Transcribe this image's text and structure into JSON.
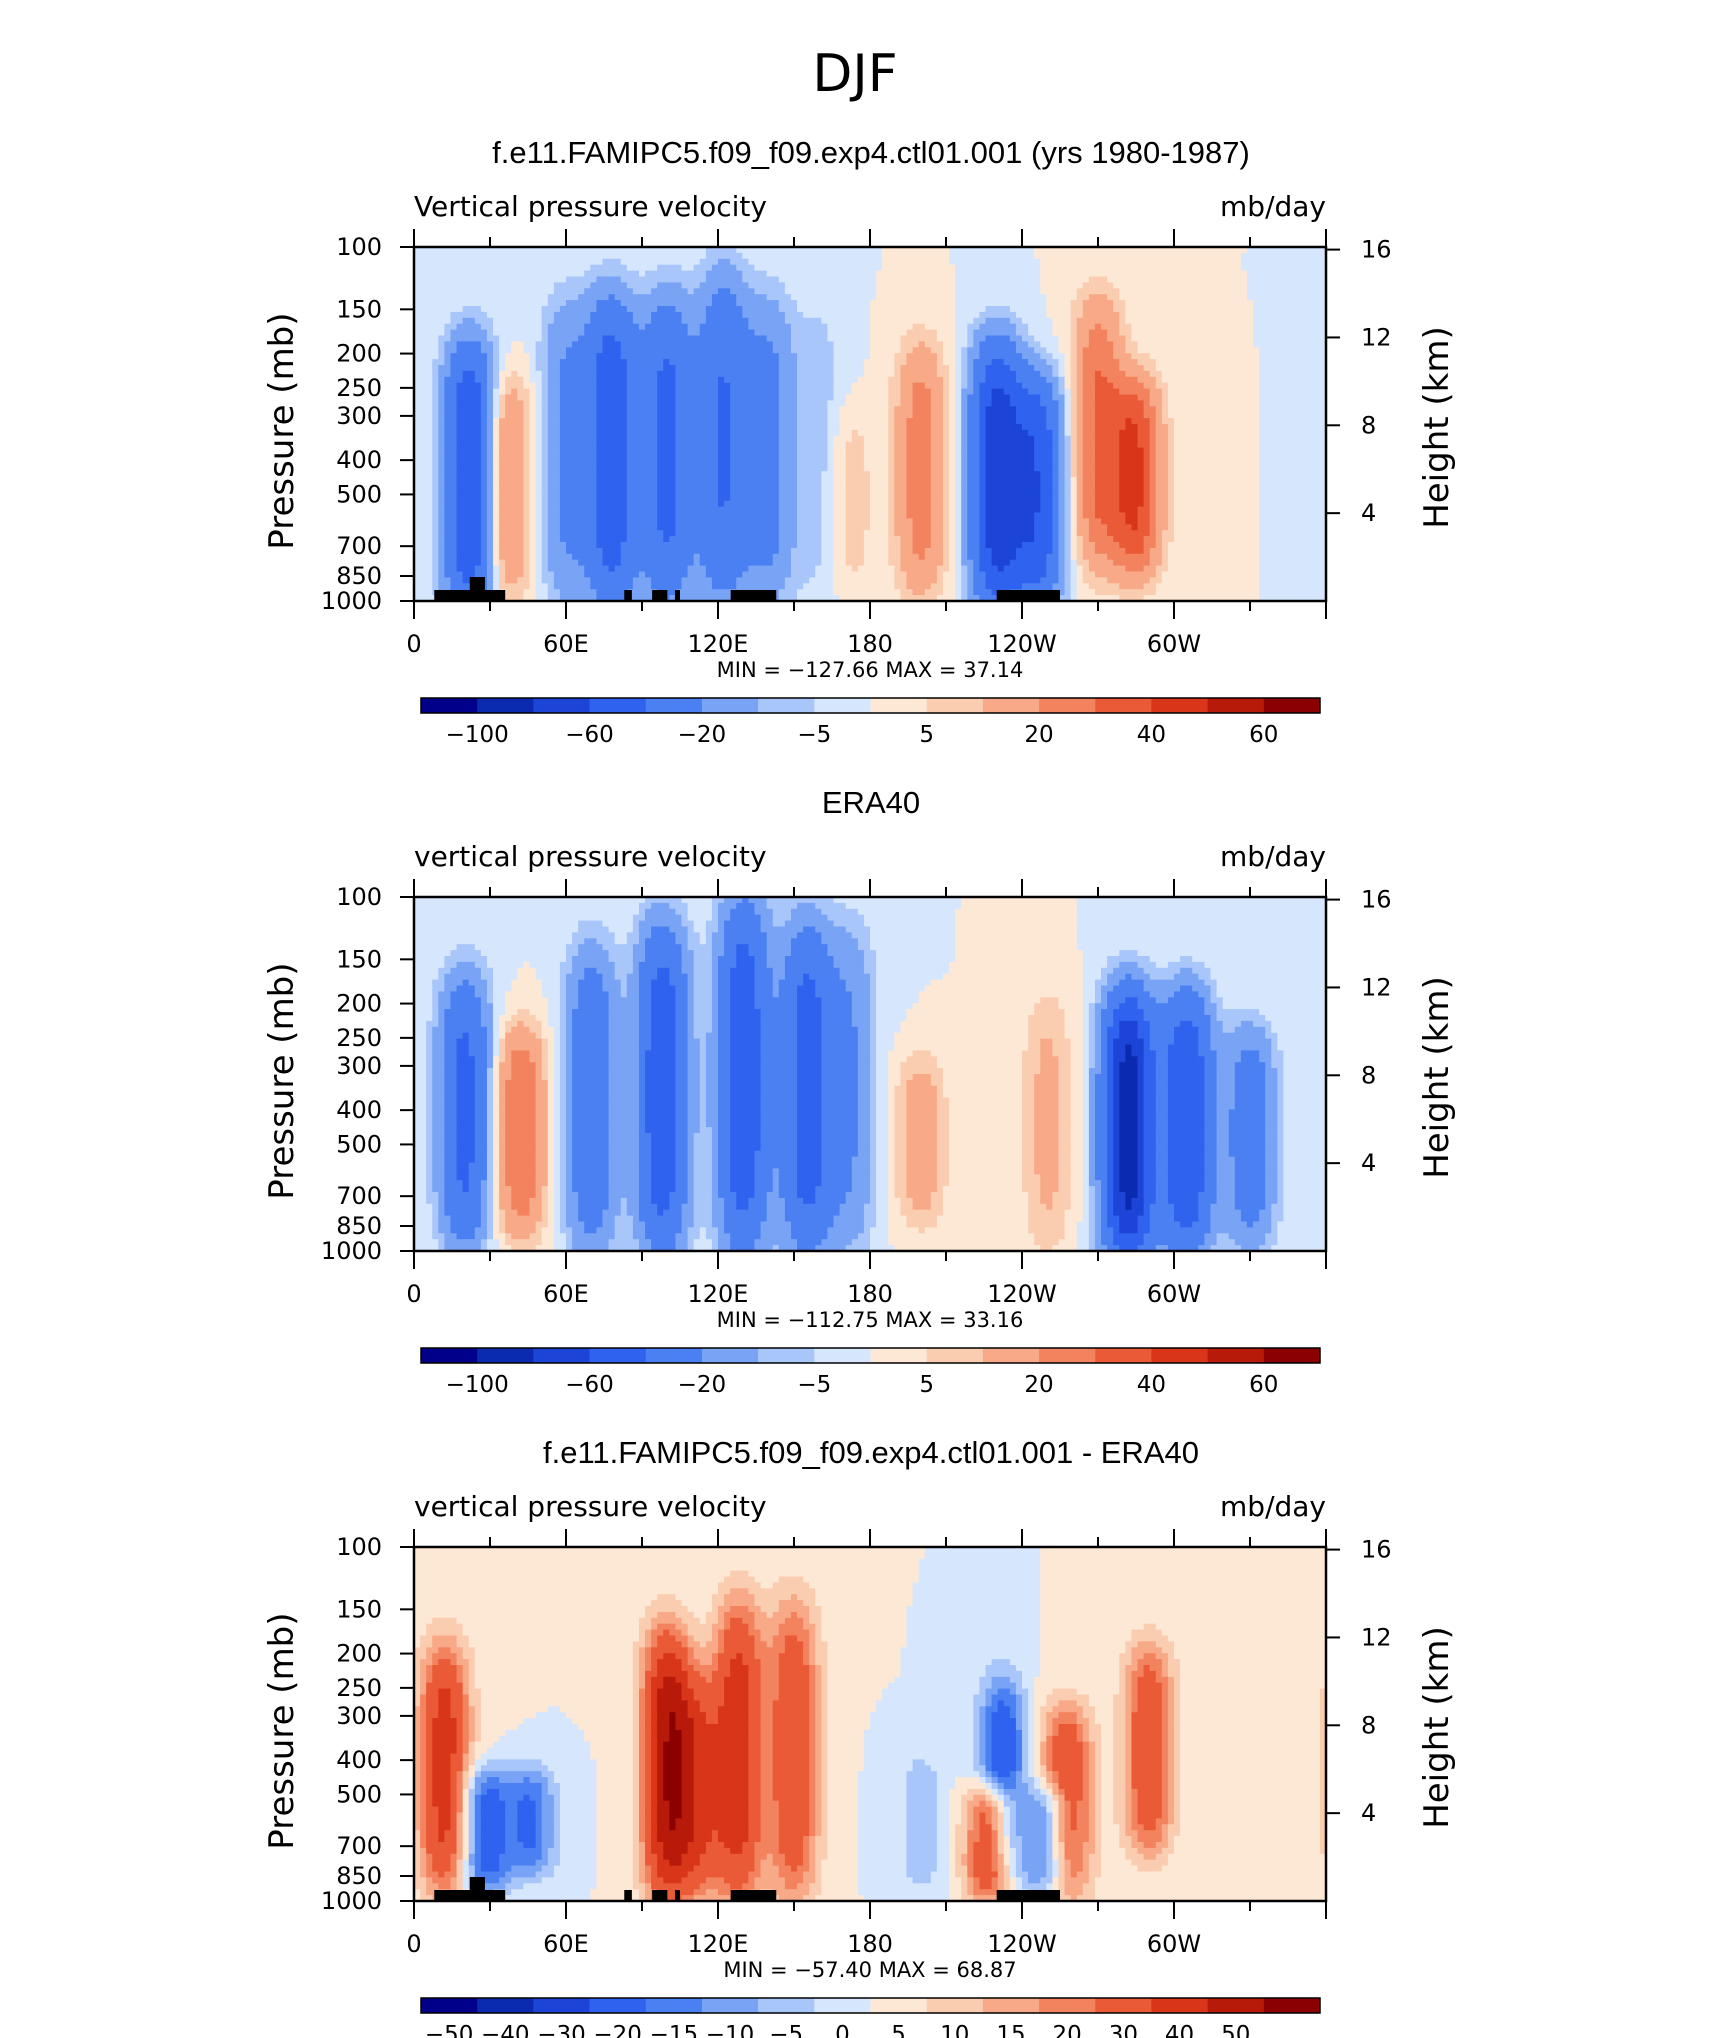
{
  "figure": {
    "title": "DJF"
  },
  "colors": {
    "axis": "#000000",
    "land_mask": "#000000"
  },
  "chart_data": [
    {
      "type": "heatmap",
      "title": "f.e11.FAMIPC5.f09_f09.exp4.ctl01.001 (yrs 1980-1987)",
      "subtitle_left": "Vertical pressure velocity",
      "subtitle_right": "mb/day",
      "ylabel": "Pressure (mb)",
      "y2label": "Height (km)",
      "x_ticks": [
        "0",
        "60E",
        "120E",
        "180",
        "120W",
        "60W"
      ],
      "y_ticks": [
        "100",
        "150",
        "200",
        "250",
        "300",
        "400",
        "500",
        "700",
        "850",
        "1000"
      ],
      "y2_ticks": [
        "16",
        "12",
        "8",
        "4"
      ],
      "ylim": [
        1000,
        100
      ],
      "stats": "MIN = −127.66   MAX =   37.14",
      "colorbar_labels": [
        "−100",
        "−60",
        "−20",
        "−5",
        "5",
        "20",
        "40",
        "60"
      ],
      "colorbar_colors": [
        "#00008b",
        "#0a2bb0",
        "#1c45d8",
        "#2f62ee",
        "#4a80f2",
        "#79a3f5",
        "#a8c6fa",
        "#d6e7fd",
        "#fde8d6",
        "#fbcdb0",
        "#f8a987",
        "#f3835f",
        "#ea5a36",
        "#d83519",
        "#b81a0a",
        "#8b0000"
      ],
      "land_mask_lon": [
        [
          8,
          36
        ],
        [
          83,
          86
        ],
        [
          94,
          100
        ],
        [
          103,
          105
        ],
        [
          125,
          143
        ],
        [
          230,
          255
        ]
      ],
      "land_tall_lon": [
        [
          22,
          28
        ]
      ],
      "features": [
        {
          "lon": 22,
          "top": 200,
          "bottom": 1000,
          "value": -60
        },
        {
          "lon": 36,
          "top": 250,
          "bottom": 900,
          "value": 25
        },
        {
          "lon": 60,
          "top": 150,
          "bottom": 950,
          "value": -22
        },
        {
          "lon": 78,
          "top": 150,
          "bottom": 950,
          "value": -55
        },
        {
          "lon": 100,
          "top": 150,
          "bottom": 950,
          "value": -45
        },
        {
          "lon": 122,
          "top": 130,
          "bottom": 950,
          "value": -40
        },
        {
          "lon": 140,
          "top": 150,
          "bottom": 950,
          "value": -25
        },
        {
          "lon": 160,
          "top": 150,
          "bottom": 950,
          "value": -8
        },
        {
          "lon": 172,
          "top": 300,
          "bottom": 900,
          "value": 8
        },
        {
          "lon": 200,
          "top": 200,
          "bottom": 900,
          "value": 25
        },
        {
          "lon": 230,
          "top": 200,
          "bottom": 1000,
          "value": -70
        },
        {
          "lon": 246,
          "top": 250,
          "bottom": 950,
          "value": -55
        },
        {
          "lon": 270,
          "top": 150,
          "bottom": 750,
          "value": 30
        },
        {
          "lon": 285,
          "top": 250,
          "bottom": 800,
          "value": 40
        }
      ]
    },
    {
      "type": "heatmap",
      "title": "ERA40",
      "subtitle_left": "vertical pressure velocity",
      "subtitle_right": "mb/day",
      "ylabel": "Pressure (mb)",
      "y2label": "Height (km)",
      "x_ticks": [
        "0",
        "60E",
        "120E",
        "180",
        "120W",
        "60W"
      ],
      "y_ticks": [
        "100",
        "150",
        "200",
        "250",
        "300",
        "400",
        "500",
        "700",
        "850",
        "1000"
      ],
      "y2_ticks": [
        "16",
        "12",
        "8",
        "4"
      ],
      "ylim": [
        1000,
        100
      ],
      "stats": "MIN = −112.75   MAX =   33.16",
      "colorbar_labels": [
        "−100",
        "−60",
        "−20",
        "−5",
        "5",
        "20",
        "40",
        "60"
      ],
      "colorbar_colors": [
        "#00008b",
        "#0a2bb0",
        "#1c45d8",
        "#2f62ee",
        "#4a80f2",
        "#79a3f5",
        "#a8c6fa",
        "#d6e7fd",
        "#fde8d6",
        "#fbcdb0",
        "#f8a987",
        "#f3835f",
        "#ea5a36",
        "#d83519",
        "#b81a0a",
        "#8b0000"
      ],
      "land_mask_lon": [],
      "land_tall_lon": [],
      "features": [
        {
          "lon": 20,
          "top": 180,
          "bottom": 900,
          "value": -45
        },
        {
          "lon": 42,
          "top": 250,
          "bottom": 850,
          "value": 30
        },
        {
          "lon": 70,
          "top": 150,
          "bottom": 950,
          "value": -35
        },
        {
          "lon": 98,
          "top": 130,
          "bottom": 950,
          "value": -55
        },
        {
          "lon": 130,
          "top": 110,
          "bottom": 950,
          "value": -55
        },
        {
          "lon": 155,
          "top": 130,
          "bottom": 950,
          "value": -50
        },
        {
          "lon": 172,
          "top": 130,
          "bottom": 950,
          "value": -20
        },
        {
          "lon": 200,
          "top": 300,
          "bottom": 800,
          "value": 15
        },
        {
          "lon": 250,
          "top": 200,
          "bottom": 950,
          "value": 12
        },
        {
          "lon": 282,
          "top": 200,
          "bottom": 1000,
          "value": -90
        },
        {
          "lon": 305,
          "top": 200,
          "bottom": 950,
          "value": -60
        },
        {
          "lon": 330,
          "top": 250,
          "bottom": 900,
          "value": -30
        }
      ]
    },
    {
      "type": "heatmap",
      "title": "f.e11.FAMIPC5.f09_f09.exp4.ctl01.001 - ERA40",
      "subtitle_left": "vertical pressure velocity",
      "subtitle_right": "mb/day",
      "ylabel": "Pressure (mb)",
      "y2label": "Height (km)",
      "x_ticks": [
        "0",
        "60E",
        "120E",
        "180",
        "120W",
        "60W"
      ],
      "y_ticks": [
        "100",
        "150",
        "200",
        "250",
        "300",
        "400",
        "500",
        "700",
        "850",
        "1000"
      ],
      "y2_ticks": [
        "16",
        "12",
        "8",
        "4"
      ],
      "ylim": [
        1000,
        100
      ],
      "stats": "MIN =  −57.40   MAX =   68.87",
      "colorbar_labels": [
        "−50",
        "−40",
        "−30",
        "−20",
        "−15",
        "−10",
        "−5",
        "0",
        "5",
        "10",
        "15",
        "20",
        "30",
        "40",
        "50"
      ],
      "colorbar_colors": [
        "#00008b",
        "#0a2bb0",
        "#1c45d8",
        "#2f62ee",
        "#4a80f2",
        "#79a3f5",
        "#a8c6fa",
        "#d6e7fd",
        "#fde8d6",
        "#fbcdb0",
        "#f8a987",
        "#f3835f",
        "#ea5a36",
        "#d83519",
        "#b81a0a",
        "#8b0000"
      ],
      "land_mask_lon": [
        [
          8,
          36
        ],
        [
          83,
          86
        ],
        [
          94,
          100
        ],
        [
          103,
          105
        ],
        [
          125,
          143
        ],
        [
          230,
          255
        ]
      ],
      "land_tall_lon": [
        [
          22,
          28
        ]
      ],
      "features": [
        {
          "lon": 12,
          "top": 200,
          "bottom": 900,
          "value": 35
        },
        {
          "lon": 28,
          "top": 450,
          "bottom": 900,
          "value": -25
        },
        {
          "lon": 46,
          "top": 450,
          "bottom": 800,
          "value": -20
        },
        {
          "lon": 100,
          "top": 180,
          "bottom": 950,
          "value": 45
        },
        {
          "lon": 112,
          "top": 250,
          "bottom": 900,
          "value": 25
        },
        {
          "lon": 128,
          "top": 150,
          "bottom": 950,
          "value": 35
        },
        {
          "lon": 150,
          "top": 150,
          "bottom": 950,
          "value": 28
        },
        {
          "lon": 200,
          "top": 400,
          "bottom": 900,
          "value": -8
        },
        {
          "lon": 238,
          "top": 250,
          "bottom": 900,
          "value": 15
        },
        {
          "lon": 228,
          "top": 500,
          "bottom": 950,
          "value": 40
        },
        {
          "lon": 234,
          "top": 250,
          "bottom": 900,
          "value": -40
        },
        {
          "lon": 250,
          "top": 500,
          "bottom": 900,
          "value": -25
        },
        {
          "lon": 258,
          "top": 300,
          "bottom": 950,
          "value": 30
        },
        {
          "lon": 290,
          "top": 200,
          "bottom": 700,
          "value": 28
        }
      ]
    }
  ]
}
